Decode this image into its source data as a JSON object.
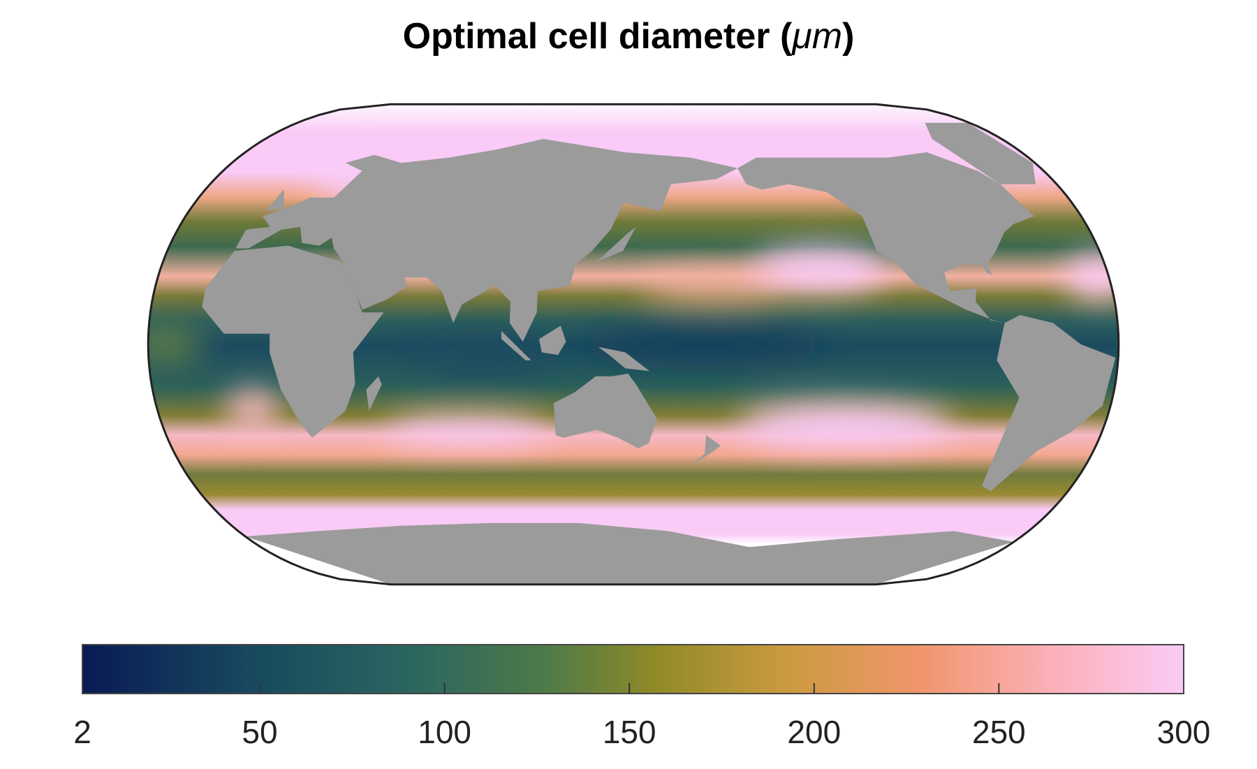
{
  "chart_data": {
    "type": "heatmap",
    "subtype": "global map (Eckert-style projection, Pacific-centred)",
    "title": "Optimal cell diameter (μm)",
    "title_parts": {
      "main": "Optimal cell diameter (",
      "unit": "μm",
      "close": ")"
    },
    "colorbar": {
      "orientation": "horizontal",
      "placement": "bottom",
      "range": [
        2,
        300
      ],
      "ticks": [
        2,
        50,
        100,
        150,
        200,
        250,
        300
      ],
      "tick_labels": [
        "2",
        "50",
        "100",
        "150",
        "200",
        "250",
        "300"
      ],
      "colors": [
        "#0a1a55",
        "#17485e",
        "#2b6660",
        "#4e7a48",
        "#8f8a28",
        "#cc9a40",
        "#f0966c",
        "#fcb0b8",
        "#f9cbf6"
      ]
    },
    "land_color": "#9b9b9b",
    "missing_color": "#ffffff",
    "patterns": [
      "Low values (~40-80) in equatorial Pacific and Indian Ocean",
      "High values (~300) in subtropical gyres and Southern Ocean band",
      "Mid values (~100-150) in mid-latitude bands"
    ]
  }
}
